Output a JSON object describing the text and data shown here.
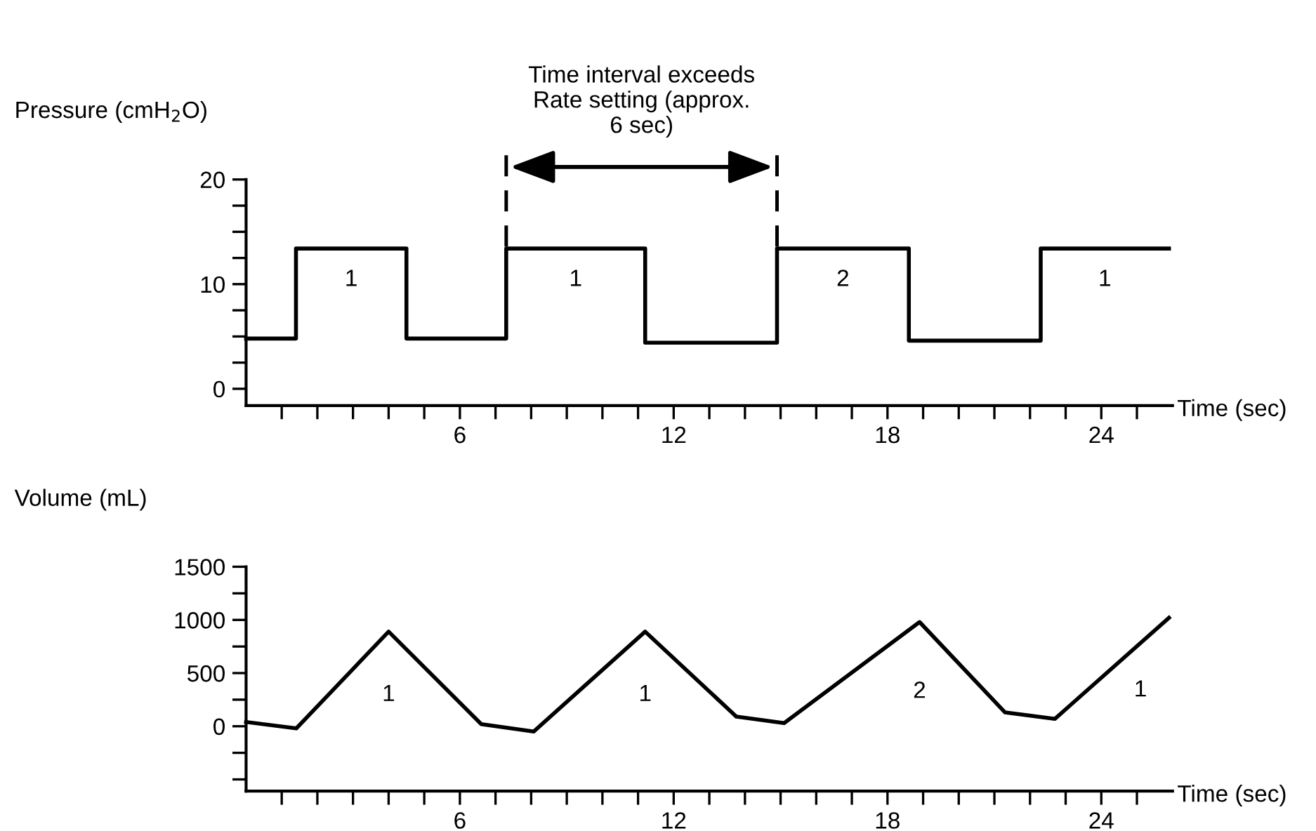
{
  "chart_data": [
    {
      "type": "step",
      "ylabel": "Pressure (cmH$_{2}$O)",
      "xlabel": "Time (sec)",
      "color": "#000000",
      "x": [
        0,
        1.4,
        4.5,
        7.3,
        11.2,
        14.9,
        18.6,
        22.3,
        25.9
      ],
      "values": [
        4.8,
        13.4,
        4.8,
        13.4,
        4.4,
        13.4,
        4.6,
        13.4,
        13.4
      ],
      "xlim": [
        0,
        26
      ],
      "ylim": [
        -1.6,
        20
      ],
      "xticks": [
        {
          "value": 1,
          "label": null
        },
        {
          "value": 2,
          "label": null
        },
        {
          "value": 3,
          "label": null
        },
        {
          "value": 4,
          "label": null
        },
        {
          "value": 5,
          "label": null
        },
        6,
        {
          "value": 7,
          "label": null
        },
        {
          "value": 8,
          "label": null
        },
        {
          "value": 9,
          "label": null
        },
        {
          "value": 10,
          "label": null
        },
        {
          "value": 11,
          "label": null
        },
        12,
        {
          "value": 13,
          "label": null
        },
        {
          "value": 14,
          "label": null
        },
        {
          "value": 15,
          "label": null
        },
        {
          "value": 16,
          "label": null
        },
        {
          "value": 17,
          "label": null
        },
        18,
        {
          "value": 19,
          "label": null
        },
        {
          "value": 20,
          "label": null
        },
        {
          "value": 21,
          "label": null
        },
        {
          "value": 22,
          "label": null
        },
        {
          "value": 23,
          "label": null
        },
        24,
        {
          "value": 25,
          "label": null
        }
      ],
      "yticks": [
        0,
        {
          "value": 2.5,
          "label": null
        },
        {
          "value": 5,
          "label": null
        },
        {
          "value": 7.5,
          "label": null
        },
        10,
        {
          "value": 12.5,
          "label": null
        },
        {
          "value": 15,
          "label": null
        },
        {
          "value": 17.5,
          "label": null
        },
        20
      ],
      "ref_lines": [
        {
          "axis": "x",
          "value": 7.3,
          "label": null,
          "line_style": "dashed",
          "color": "#000000"
        },
        {
          "axis": "x",
          "value": 14.9,
          "label": null,
          "line_style": "dashed",
          "color": "#000000"
        }
      ],
      "annotations": [
        "1",
        "1",
        "2",
        "1",
        "Time interval exceeds\nRate setting (approx.\n6 sec)"
      ],
      "grid": false,
      "line_style": "solid",
      "marker": "none"
    },
    {
      "type": "line",
      "ylabel": "Volume (mL)",
      "xlabel": "Time (sec)",
      "color": "#000000",
      "x": [
        0,
        1.41,
        4.0,
        6.6,
        8.07,
        11.2,
        13.76,
        15.1,
        18.9,
        21.3,
        22.7,
        25.9
      ],
      "values": [
        40,
        -20,
        890,
        20,
        -50,
        890,
        90,
        30,
        980,
        130,
        70,
        1020
      ],
      "xlim": [
        0,
        26
      ],
      "ylim": [
        -610,
        1500
      ],
      "xticks": [
        {
          "value": 1,
          "label": null
        },
        {
          "value": 2,
          "label": null
        },
        {
          "value": 3,
          "label": null
        },
        {
          "value": 4,
          "label": null
        },
        {
          "value": 5,
          "label": null
        },
        6,
        {
          "value": 7,
          "label": null
        },
        {
          "value": 8,
          "label": null
        },
        {
          "value": 9,
          "label": null
        },
        {
          "value": 10,
          "label": null
        },
        {
          "value": 11,
          "label": null
        },
        12,
        {
          "value": 13,
          "label": null
        },
        {
          "value": 14,
          "label": null
        },
        {
          "value": 15,
          "label": null
        },
        {
          "value": 16,
          "label": null
        },
        {
          "value": 17,
          "label": null
        },
        18,
        {
          "value": 19,
          "label": null
        },
        {
          "value": 20,
          "label": null
        },
        {
          "value": 21,
          "label": null
        },
        {
          "value": 22,
          "label": null
        },
        {
          "value": 23,
          "label": null
        },
        24,
        {
          "value": 25,
          "label": null
        }
      ],
      "yticks": [
        {
          "value": -500,
          "label": null
        },
        {
          "value": -250,
          "label": null
        },
        0,
        {
          "value": 250,
          "label": null
        },
        500,
        {
          "value": 750,
          "label": null
        },
        1000,
        {
          "value": 1250,
          "label": null
        },
        1500
      ],
      "annotations": [
        "1",
        "1",
        "2",
        "1"
      ],
      "grid": false,
      "line_style": "solid",
      "marker": "none"
    }
  ]
}
